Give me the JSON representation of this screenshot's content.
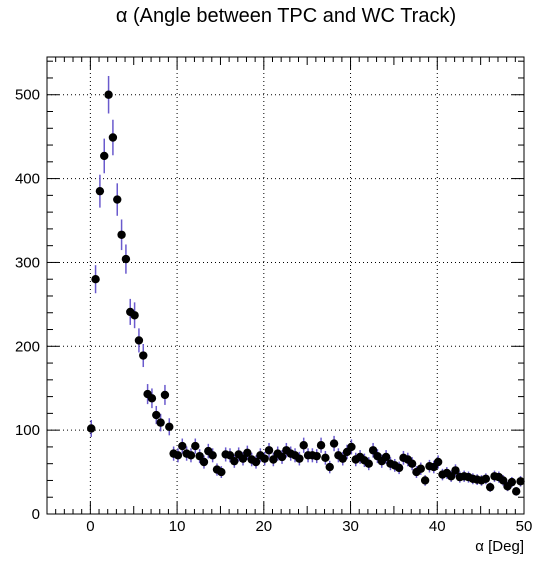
{
  "chart_data": {
    "type": "scatter",
    "title": "α (Angle between TPC and WC Track)",
    "xlabel": "α [Deg]",
    "ylabel": "",
    "xlim": [
      -5,
      50
    ],
    "ylim": [
      0,
      545
    ],
    "x_ticks": [
      0,
      10,
      20,
      30,
      40,
      50
    ],
    "y_ticks": [
      0,
      100,
      200,
      300,
      400,
      500
    ],
    "x_tick_labels": [
      "0",
      "10",
      "20",
      "30",
      "40",
      "50"
    ],
    "y_tick_labels": [
      "0",
      "100",
      "200",
      "300",
      "400",
      "500"
    ],
    "grid": true,
    "legend": "none",
    "colors": {
      "marker": "#000000",
      "error_bar": "#6a5acd",
      "grid": "#000000"
    },
    "series": [
      {
        "points": [
          {
            "x": 0.1,
            "y": 102
          },
          {
            "x": 0.6,
            "y": 280
          },
          {
            "x": 1.1,
            "y": 385
          },
          {
            "x": 1.6,
            "y": 427
          },
          {
            "x": 2.1,
            "y": 500
          },
          {
            "x": 2.6,
            "y": 449
          },
          {
            "x": 3.1,
            "y": 375
          },
          {
            "x": 3.6,
            "y": 333
          },
          {
            "x": 4.1,
            "y": 304
          },
          {
            "x": 4.6,
            "y": 241
          },
          {
            "x": 5.1,
            "y": 237
          },
          {
            "x": 5.6,
            "y": 207
          },
          {
            "x": 6.1,
            "y": 189
          },
          {
            "x": 6.6,
            "y": 143
          },
          {
            "x": 7.1,
            "y": 138
          },
          {
            "x": 7.6,
            "y": 118
          },
          {
            "x": 8.1,
            "y": 109
          },
          {
            "x": 8.6,
            "y": 142
          },
          {
            "x": 9.1,
            "y": 104
          },
          {
            "x": 9.6,
            "y": 72
          },
          {
            "x": 10.1,
            "y": 70
          },
          {
            "x": 10.6,
            "y": 81
          },
          {
            "x": 11.1,
            "y": 72
          },
          {
            "x": 11.6,
            "y": 70
          },
          {
            "x": 12.1,
            "y": 81
          },
          {
            "x": 12.6,
            "y": 69
          },
          {
            "x": 13.1,
            "y": 62
          },
          {
            "x": 13.6,
            "y": 75
          },
          {
            "x": 14.1,
            "y": 70
          },
          {
            "x": 14.6,
            "y": 53
          },
          {
            "x": 15.1,
            "y": 50
          },
          {
            "x": 15.6,
            "y": 71
          },
          {
            "x": 16.1,
            "y": 70
          },
          {
            "x": 16.6,
            "y": 63
          },
          {
            "x": 17.1,
            "y": 71
          },
          {
            "x": 17.6,
            "y": 66
          },
          {
            "x": 18.1,
            "y": 73
          },
          {
            "x": 18.6,
            "y": 65
          },
          {
            "x": 19.1,
            "y": 62
          },
          {
            "x": 19.6,
            "y": 70
          },
          {
            "x": 20.1,
            "y": 66
          },
          {
            "x": 20.6,
            "y": 76
          },
          {
            "x": 21.1,
            "y": 65
          },
          {
            "x": 21.6,
            "y": 72
          },
          {
            "x": 22.1,
            "y": 68
          },
          {
            "x": 22.6,
            "y": 76
          },
          {
            "x": 23.1,
            "y": 72
          },
          {
            "x": 23.6,
            "y": 70
          },
          {
            "x": 24.1,
            "y": 66
          },
          {
            "x": 24.6,
            "y": 82
          },
          {
            "x": 25.1,
            "y": 70
          },
          {
            "x": 25.6,
            "y": 70
          },
          {
            "x": 26.1,
            "y": 69
          },
          {
            "x": 26.6,
            "y": 82
          },
          {
            "x": 27.1,
            "y": 67
          },
          {
            "x": 27.6,
            "y": 56
          },
          {
            "x": 28.1,
            "y": 84
          },
          {
            "x": 28.6,
            "y": 70
          },
          {
            "x": 29.1,
            "y": 66
          },
          {
            "x": 29.6,
            "y": 74
          },
          {
            "x": 30.1,
            "y": 80
          },
          {
            "x": 30.6,
            "y": 65
          },
          {
            "x": 31.1,
            "y": 68
          },
          {
            "x": 31.6,
            "y": 64
          },
          {
            "x": 32.1,
            "y": 60
          },
          {
            "x": 32.6,
            "y": 76
          },
          {
            "x": 33.1,
            "y": 69
          },
          {
            "x": 33.6,
            "y": 63
          },
          {
            "x": 34.1,
            "y": 68
          },
          {
            "x": 34.6,
            "y": 60
          },
          {
            "x": 35.1,
            "y": 58
          },
          {
            "x": 35.6,
            "y": 55
          },
          {
            "x": 36.1,
            "y": 67
          },
          {
            "x": 36.6,
            "y": 65
          },
          {
            "x": 37.1,
            "y": 60
          },
          {
            "x": 37.6,
            "y": 50
          },
          {
            "x": 38.1,
            "y": 54
          },
          {
            "x": 38.6,
            "y": 40
          },
          {
            "x": 39.1,
            "y": 57
          },
          {
            "x": 39.6,
            "y": 56
          },
          {
            "x": 40.1,
            "y": 62
          },
          {
            "x": 40.6,
            "y": 47
          },
          {
            "x": 41.1,
            "y": 49
          },
          {
            "x": 41.6,
            "y": 45
          },
          {
            "x": 42.1,
            "y": 52
          },
          {
            "x": 42.6,
            "y": 44
          },
          {
            "x": 43.1,
            "y": 45
          },
          {
            "x": 43.6,
            "y": 44
          },
          {
            "x": 44.1,
            "y": 42
          },
          {
            "x": 44.6,
            "y": 41
          },
          {
            "x": 45.1,
            "y": 40
          },
          {
            "x": 45.6,
            "y": 42
          },
          {
            "x": 46.1,
            "y": 32
          },
          {
            "x": 46.6,
            "y": 45
          },
          {
            "x": 47.1,
            "y": 44
          },
          {
            "x": 47.6,
            "y": 40
          },
          {
            "x": 48.1,
            "y": 33
          },
          {
            "x": 48.6,
            "y": 38
          },
          {
            "x": 49.1,
            "y": 27
          },
          {
            "x": 49.6,
            "y": 39
          }
        ]
      }
    ]
  }
}
